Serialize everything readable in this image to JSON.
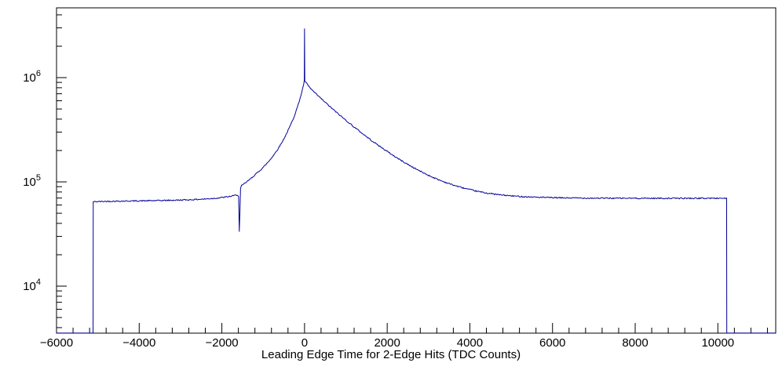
{
  "style": {
    "background": "#ffffff",
    "axis_color": "#000000",
    "text_color": "#000000",
    "line_color": "#00009a"
  },
  "axis": {
    "x": {
      "min": -6000,
      "max": 11400,
      "major_step": 2000,
      "minor_step": 400,
      "ticks": [
        {
          "value": -6000,
          "label": "−6000"
        },
        {
          "value": -4000,
          "label": "−4000"
        },
        {
          "value": -2000,
          "label": "−2000"
        },
        {
          "value": 0,
          "label": "0"
        },
        {
          "value": 2000,
          "label": "2000"
        },
        {
          "value": 4000,
          "label": "4000"
        },
        {
          "value": 6000,
          "label": "6000"
        },
        {
          "value": 8000,
          "label": "8000"
        },
        {
          "value": 10000,
          "label": "10000"
        }
      ]
    },
    "y": {
      "scale": "log",
      "min": 3540,
      "max": 4670000,
      "labels": [
        {
          "value": 10000,
          "base": "10",
          "exp": "4"
        },
        {
          "value": 100000,
          "base": "10",
          "exp": "5"
        },
        {
          "value": 1000000,
          "base": "10",
          "exp": "6"
        }
      ]
    }
  },
  "chart_data": {
    "type": "line",
    "title": "",
    "xlabel": "Leading Edge Time for 2-Edge Hits (TDC Counts)",
    "ylabel": "",
    "xlim": [
      -6000,
      11400
    ],
    "ylim": [
      3540,
      4670000
    ],
    "yscale": "log",
    "grid": false,
    "legend": "none",
    "noise": {
      "amplitude": 0.006,
      "seed": 42
    },
    "series": [
      {
        "name": "leading-edge-time-histogram",
        "color": "#00009a",
        "representation": "anchor points, log-interpolated",
        "points": [
          [
            -5998,
            3545
          ],
          [
            -5116,
            3545
          ],
          [
            -5112,
            64500
          ],
          [
            -4700,
            65200
          ],
          [
            -4200,
            65600
          ],
          [
            -3700,
            66000
          ],
          [
            -3200,
            66600
          ],
          [
            -2800,
            67300
          ],
          [
            -2400,
            68500
          ],
          [
            -2100,
            70000
          ],
          [
            -1850,
            72000
          ],
          [
            -1700,
            73800
          ],
          [
            -1620,
            75200
          ],
          [
            -1595,
            73000
          ],
          [
            -1578,
            33500
          ],
          [
            -1562,
            52000
          ],
          [
            -1548,
            86000
          ],
          [
            -1525,
            91500
          ],
          [
            -1450,
            96500
          ],
          [
            -1350,
            103500
          ],
          [
            -1250,
            112000
          ],
          [
            -1150,
            121500
          ],
          [
            -1050,
            132000
          ],
          [
            -950,
            144500
          ],
          [
            -850,
            160000
          ],
          [
            -750,
            180000
          ],
          [
            -650,
            205000
          ],
          [
            -550,
            238000
          ],
          [
            -450,
            282000
          ],
          [
            -350,
            342000
          ],
          [
            -250,
            425000
          ],
          [
            -150,
            555000
          ],
          [
            -90,
            670000
          ],
          [
            -50,
            770000
          ],
          [
            -20,
            870000
          ],
          [
            -6,
            935000
          ],
          [
            0,
            2900000
          ],
          [
            6,
            930000
          ],
          [
            40,
            890000
          ],
          [
            100,
            826000
          ],
          [
            180,
            762000
          ],
          [
            280,
            696000
          ],
          [
            400,
            630000
          ],
          [
            550,
            556000
          ],
          [
            700,
            492000
          ],
          [
            850,
            437000
          ],
          [
            1000,
            390000
          ],
          [
            1200,
            336000
          ],
          [
            1400,
            291000
          ],
          [
            1600,
            253000
          ],
          [
            1800,
            222000
          ],
          [
            2000,
            196000
          ],
          [
            2200,
            173500
          ],
          [
            2400,
            155000
          ],
          [
            2600,
            139500
          ],
          [
            2800,
            126500
          ],
          [
            3000,
            115500
          ],
          [
            3200,
            106500
          ],
          [
            3400,
            99200
          ],
          [
            3600,
            93200
          ],
          [
            3800,
            88300
          ],
          [
            4000,
            84200
          ],
          [
            4200,
            80900
          ],
          [
            4400,
            78200
          ],
          [
            4700,
            75300
          ],
          [
            5000,
            73400
          ],
          [
            5400,
            71800
          ],
          [
            5800,
            70900
          ],
          [
            6200,
            70300
          ],
          [
            6800,
            69900
          ],
          [
            7500,
            69700
          ],
          [
            8500,
            69600
          ],
          [
            9500,
            69600
          ],
          [
            10212,
            69700
          ],
          [
            10216,
            3545
          ],
          [
            11398,
            3545
          ]
        ]
      }
    ]
  }
}
